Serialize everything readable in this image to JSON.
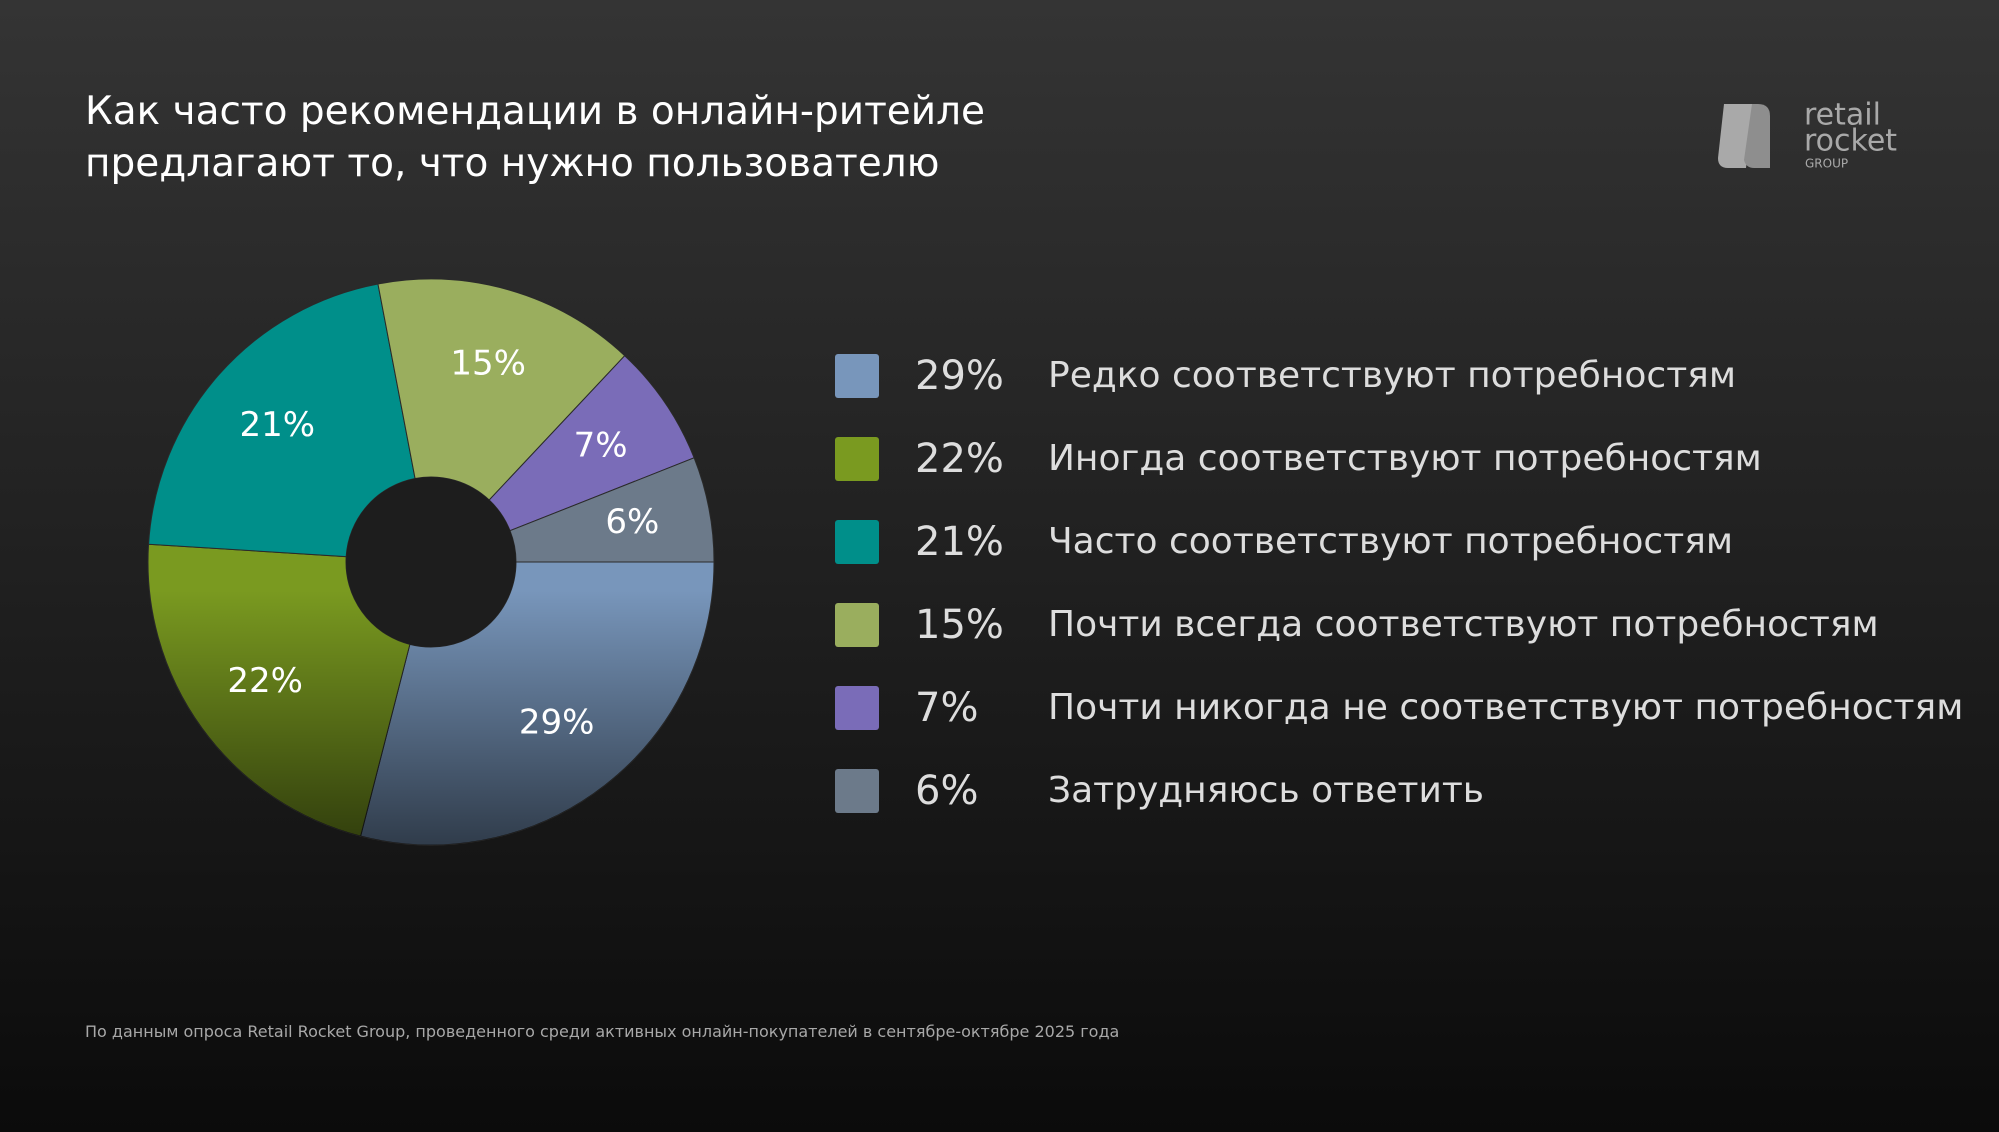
{
  "chart_data": {
    "type": "pie",
    "title": "Как часто рекомендации в онлайн-ритейле\nпредлагают то, что нужно пользователю",
    "categories": [
      "Редко соответствуют потребностям",
      "Иногда соответствуют потребностям",
      "Часто соответствуют потребностям",
      "Почти всегда соответствуют потребностям",
      "Почти никогда не соответствуют потребностям",
      "Затрудняюсь ответить"
    ],
    "values": [
      29,
      22,
      21,
      15,
      7,
      6
    ],
    "value_labels": [
      "29%",
      "22%",
      "21%",
      "15%",
      "7%",
      "6%"
    ],
    "colors": [
      "#7896bb",
      "#7a9a20",
      "#008f8a",
      "#9aae5e",
      "#7a6cb8",
      "#6c7a8a"
    ],
    "donut": true,
    "legend": "right",
    "source": "По данным опроса Retail Rocket Group, проведенного среди активных онлайн-покупателей в сентябре-октябре 2025 года",
    "logo_text": [
      "retail",
      "rocket",
      "GROUP"
    ]
  }
}
